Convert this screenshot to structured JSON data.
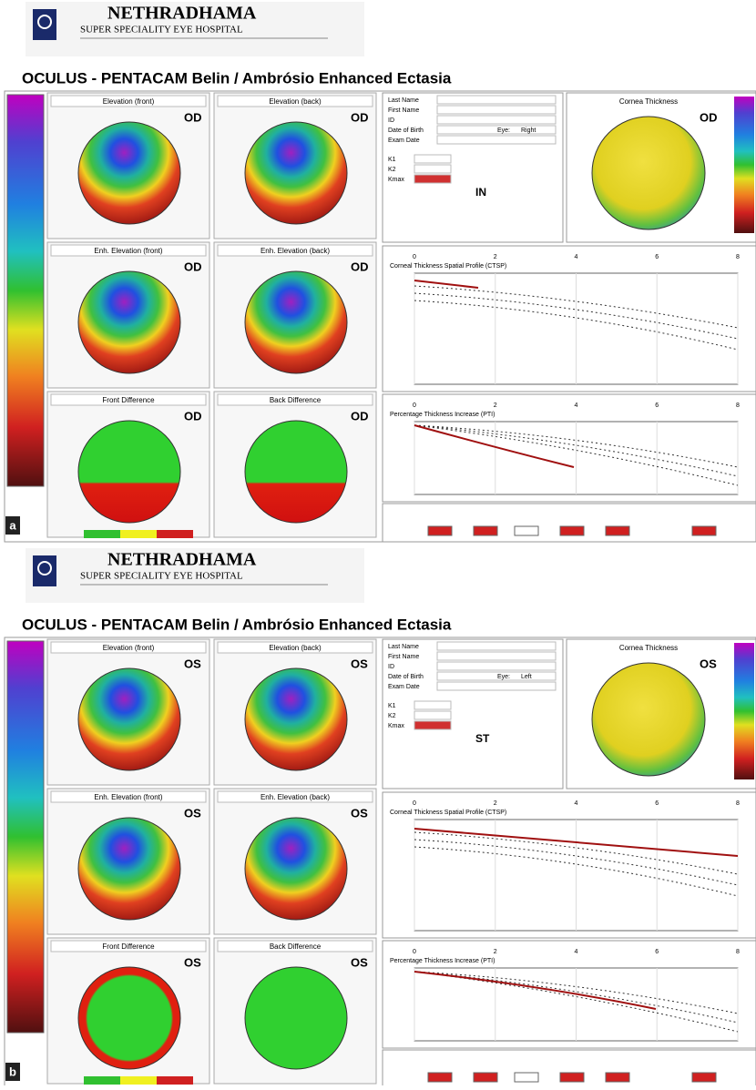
{
  "header": {
    "hospital": "NETHRADHAMA",
    "subtitle": "SUPER SPECIALITY EYE HOSPITAL"
  },
  "title": "OCULUS  -  PENTACAM   Belin / Ambrósio Enhanced Ectasia",
  "panels": [
    {
      "label": "a",
      "eye": "OD",
      "location": "IN",
      "eye_side": "Right",
      "map_titles": [
        "Elevation (front)",
        "Elevation (back)",
        "Enh. Elevation (front)",
        "Enh. Elevation (back)",
        "Front Difference",
        "Back Difference"
      ],
      "thickness_title": "Cornea Thickness",
      "ctsp_title": "Corneal Thickness Spatial Profile (CTSP)",
      "pti_title": "Percentage Thickness Increase (PTI)",
      "xticks": [
        0,
        2,
        4,
        6,
        8
      ]
    },
    {
      "label": "b",
      "eye": "OS",
      "location": "ST",
      "eye_side": "Left",
      "map_titles": [
        "Elevation (front)",
        "Elevation (back)",
        "Enh. Elevation (front)",
        "Enh. Elevation (back)",
        "Front Difference",
        "Back Difference"
      ],
      "thickness_title": "Cornea Thickness",
      "ctsp_title": "Corneal Thickness Spatial Profile (CTSP)",
      "pti_title": "Percentage Thickness Increase (PTI)",
      "xticks": [
        0,
        2,
        4,
        6,
        8
      ]
    }
  ],
  "patient_fields": [
    "Last Name",
    "First Name",
    "ID",
    "Date of Birth",
    "Exam Date"
  ],
  "k_fields": [
    "K1",
    "K2",
    "Kmax"
  ],
  "eye_label": "Eye:"
}
